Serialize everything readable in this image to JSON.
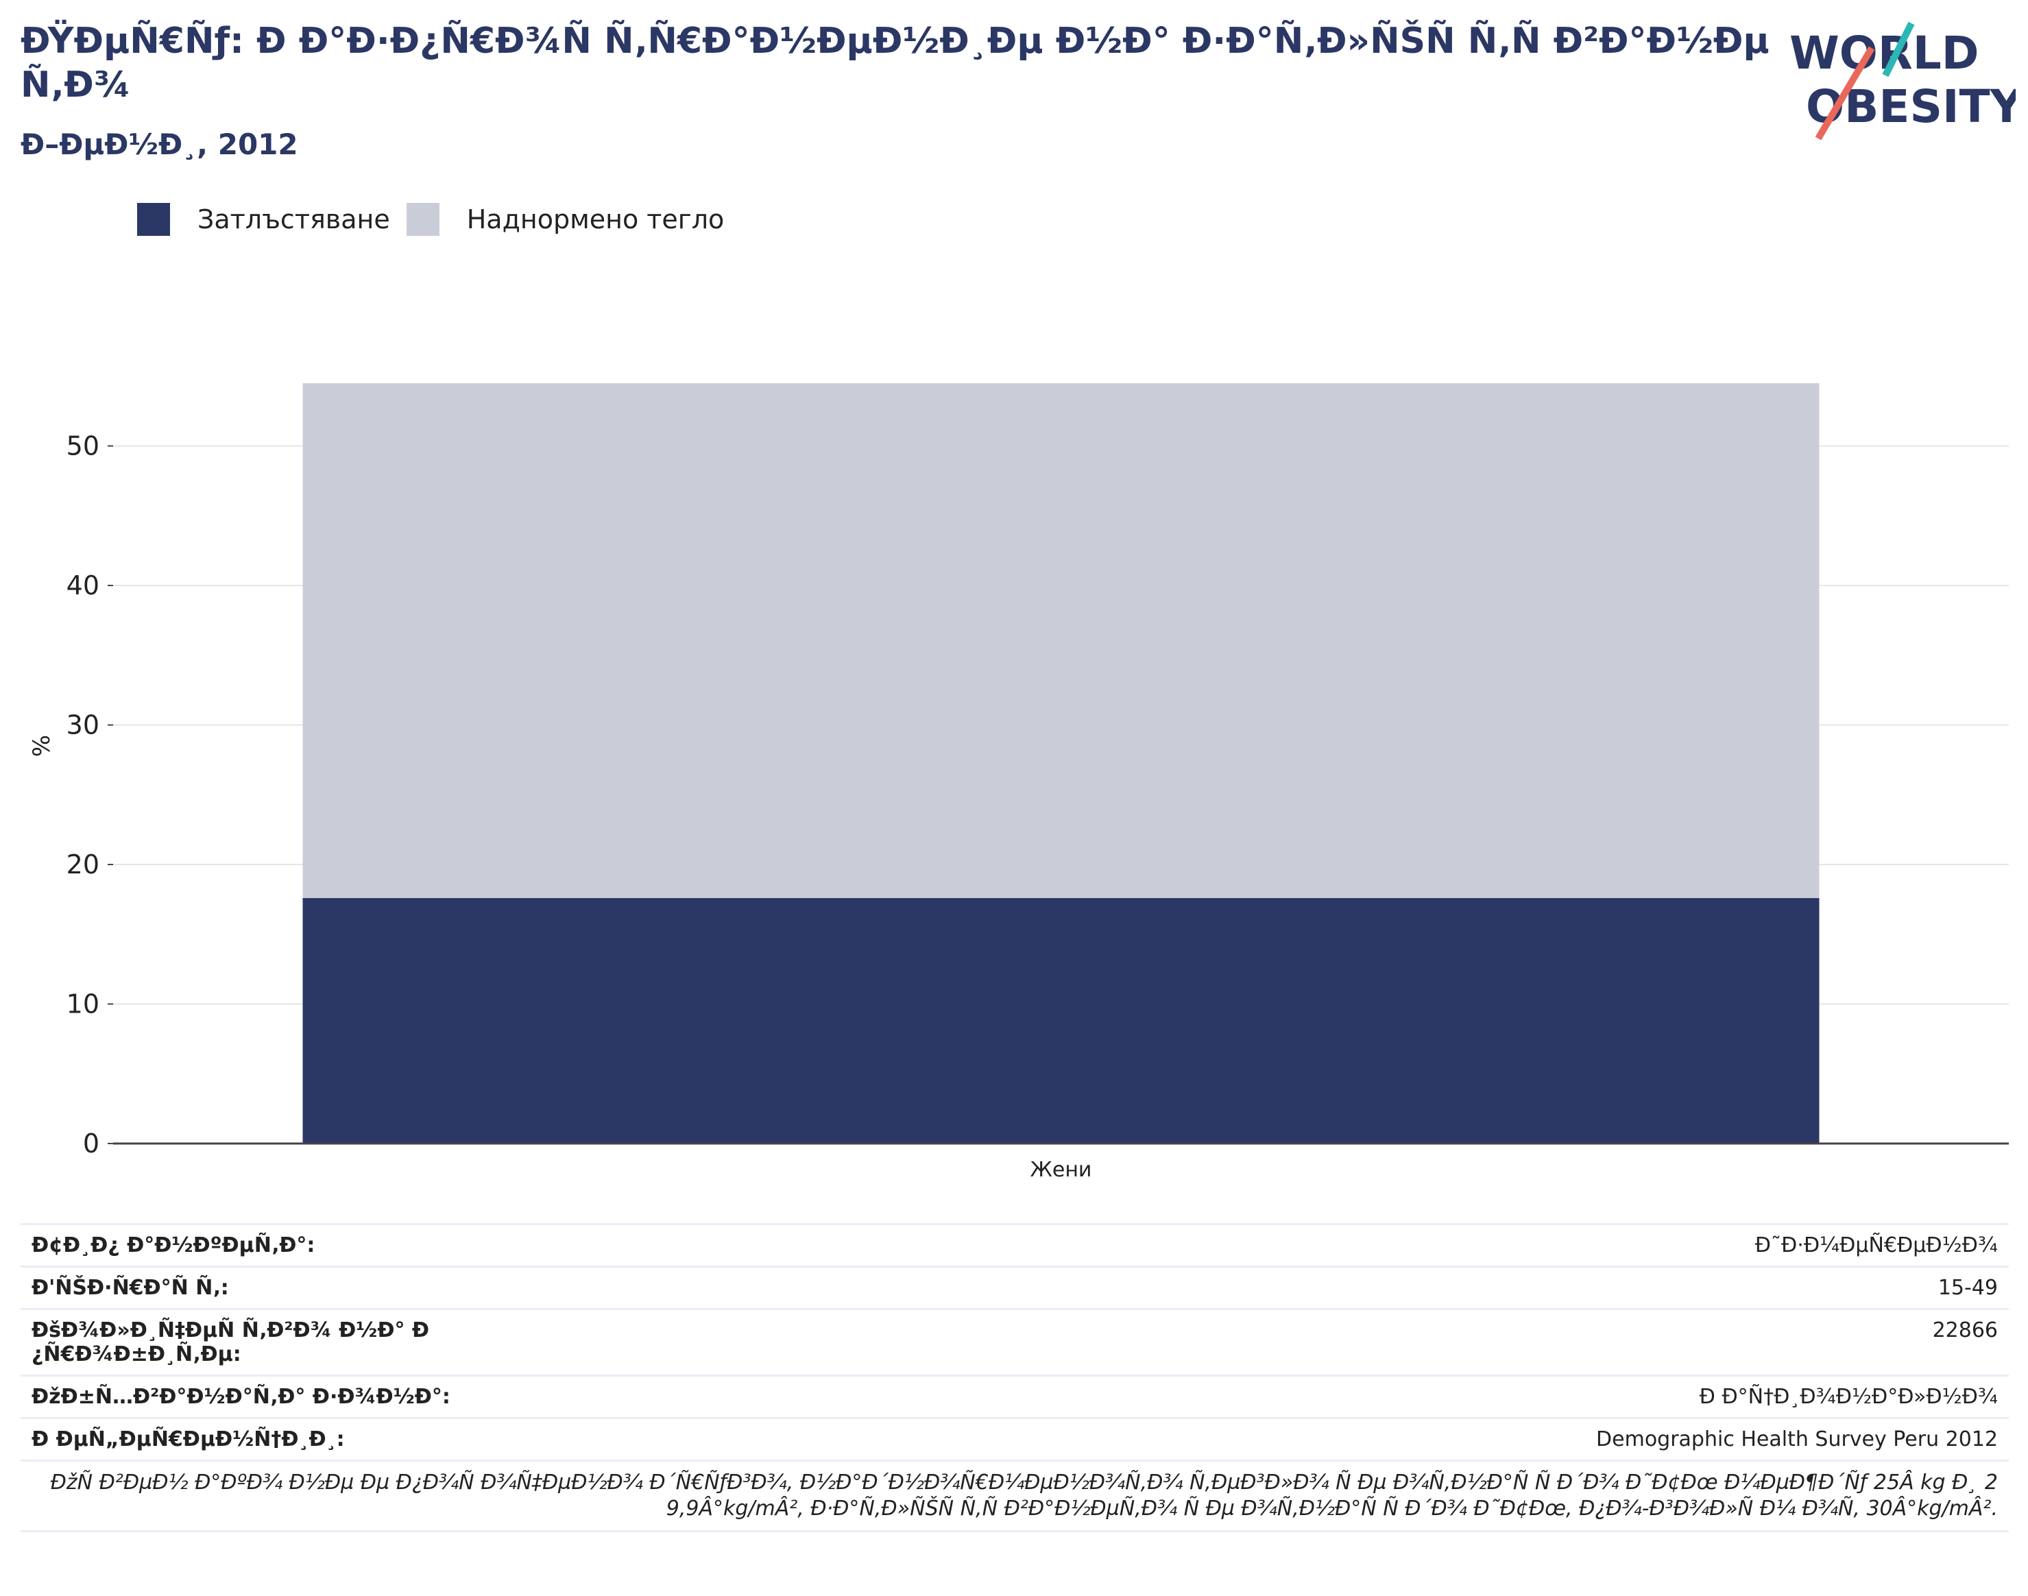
{
  "header": {
    "title": "ÐŸÐµÑ€Ñƒ: Ð Ð°Ð·Ð¿Ñ€Ð¾Ñ Ñ‚Ñ€Ð°Ð½ÐµÐ½Ð¸Ðµ Ð½Ð° Ð·Ð°Ñ‚Ð»ÑŠÑ Ñ‚Ñ Ð²Ð°Ð½ÐµÑ‚Ð¾",
    "subtitle": "Ð–ÐµÐ½Ð¸, 2012"
  },
  "logo": {
    "line1": "WORLD",
    "line2": "OBESITY",
    "accent_teal": "#2bb7b3",
    "accent_red": "#e8685a"
  },
  "colors": {
    "obesity": "#2b3764",
    "overweight": "#cacdd8",
    "grid": "#e6e6e6",
    "axis": "#444444"
  },
  "chart_data": {
    "type": "bar",
    "stacked": true,
    "categories": [
      "Жени"
    ],
    "series": [
      {
        "name": "Затлъстяване",
        "values": [
          17.6
        ]
      },
      {
        "name": "Наднормено тегло",
        "values": [
          36.9
        ]
      }
    ],
    "ylabel": "%",
    "xlabel": "",
    "ylim": [
      0,
      55
    ],
    "yticks": [
      0,
      10,
      20,
      30,
      40,
      50
    ],
    "grid": true,
    "legend": "top-left"
  },
  "info": {
    "rows": [
      {
        "key": "Ð¢Ð¸Ð¿ Ð°Ð½ÐºÐµÑ‚Ð°:",
        "value": "Ð˜Ð·Ð¼ÐµÑ€ÐµÐ½Ð¾"
      },
      {
        "key": "Ð'ÑŠÐ·Ñ€Ð°Ñ Ñ‚:",
        "value": "15-49"
      },
      {
        "key": "ÐšÐ¾Ð»Ð¸Ñ‡ÐµÑ Ñ‚Ð²Ð¾ Ð½Ð° Ð¿Ñ€Ð¾Ð±Ð¸Ñ‚Ðµ:",
        "value": "22866"
      },
      {
        "key": "ÐžÐ±Ñ…Ð²Ð°Ð½Ð°Ñ‚Ð° Ð·Ð¾Ð½Ð°:",
        "value": "Ð Ð°Ñ†Ð¸Ð¾Ð½Ð°Ð»Ð½Ð¾"
      },
      {
        "key": "Ð ÐµÑ„ÐµÑ€ÐµÐ½Ñ†Ð¸Ð¸:",
        "value": "Demographic Health Survey Peru 2012"
      }
    ],
    "note": "ÐžÑ Ð²ÐµÐ½ Ð°ÐºÐ¾ Ð½Ðµ Ðµ Ð¿Ð¾Ñ Ð¾Ñ‡ÐµÐ½Ð¾ Ð´Ñ€ÑƒÐ³Ð¾, Ð½Ð°Ð´Ð½Ð¾Ñ€Ð¼ÐµÐ½Ð¾Ñ‚Ð¾ Ñ‚ÐµÐ³Ð»Ð¾ Ñ Ðµ Ð¾Ñ‚Ð½Ð°Ñ Ñ Ð´Ð¾ Ð˜Ð¢Ðœ Ð¼ÐµÐ¶Ð´Ñƒ 25Â kg Ð¸ 29,9Â°kg/mÂ², Ð·Ð°Ñ‚Ð»ÑŠÑ Ñ‚Ñ Ð²Ð°Ð½ÐµÑ‚Ð¾ Ñ Ðµ Ð¾Ñ‚Ð½Ð°Ñ Ñ Ð´Ð¾ Ð˜Ð¢Ðœ, Ð¿Ð¾-Ð³Ð¾Ð»Ñ Ð¼ Ð¾Ñ‚ 30Â°kg/mÂ²."
  }
}
